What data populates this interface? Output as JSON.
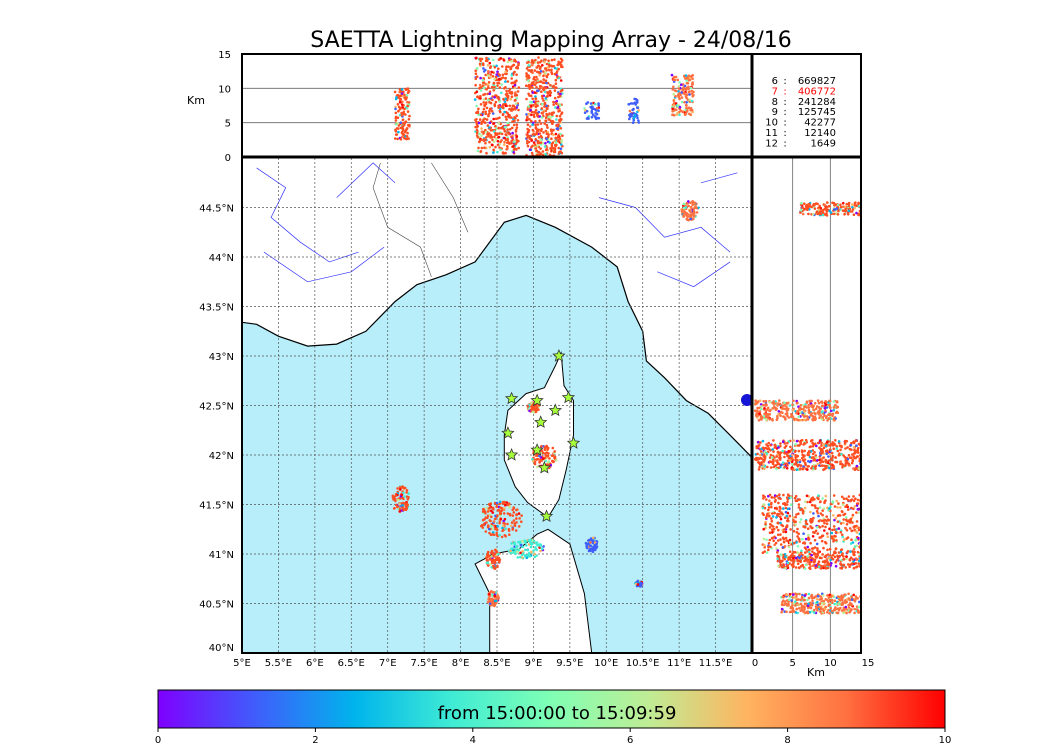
{
  "title": "SAETTA Lightning Mapping Array - 24/08/16",
  "colors": {
    "sea": "#b8eefa",
    "land": "#ffffff",
    "coast": "#000000",
    "rivers": "#3333ff",
    "borders": "#444444",
    "grid": "#555555",
    "star_fill": "#a6ff3a",
    "station_marker": "#1515d6",
    "highlight_count": "#ff0000",
    "main_cell": "#ff4f22"
  },
  "colorbar": {
    "label": "from 15:00:00 to 15:09:59",
    "ticks": [
      "0",
      "2",
      "4",
      "6",
      "8",
      "10"
    ],
    "stops": [
      "#7f00ff",
      "#3f5efb",
      "#00b4ec",
      "#40ecd4",
      "#80ffb4",
      "#c0ec94",
      "#ffb360",
      "#ff7040",
      "#ff0000"
    ]
  },
  "legend_counts": [
    {
      "label": "6",
      "value": "669827",
      "highlight": false
    },
    {
      "label": "7",
      "value": "406772",
      "highlight": true
    },
    {
      "label": "8",
      "value": "241284",
      "highlight": false
    },
    {
      "label": "9",
      "value": "125745",
      "highlight": false
    },
    {
      "label": "10",
      "value": "42277",
      "highlight": false
    },
    {
      "label": "11",
      "value": "12140",
      "highlight": false
    },
    {
      "label": "12",
      "value": "1649",
      "highlight": false
    }
  ],
  "chart_data": [
    {
      "panel": "longitude-altitude",
      "type": "scatter",
      "ylabel": "Km",
      "y_ticks": [
        "0",
        "5",
        "10",
        "15"
      ],
      "ylim": [
        0,
        15
      ],
      "xlim": [
        5,
        12
      ],
      "grid": "horizontal lines",
      "clusters": [
        {
          "lon": [
            7.1,
            7.3
          ],
          "alt": [
            2.5,
            10.5
          ],
          "dominant_color": "#ff4f22"
        },
        {
          "lon": [
            8.2,
            8.8
          ],
          "alt": [
            0.5,
            14.5
          ],
          "dominant_color": "#ff4f22"
        },
        {
          "lon": [
            8.9,
            9.4
          ],
          "alt": [
            0.0,
            14.5
          ],
          "dominant_color": "#ff4f22"
        },
        {
          "lon": [
            9.7,
            9.9
          ],
          "alt": [
            5.5,
            8.0
          ],
          "dominant_color": "#3f5efb"
        },
        {
          "lon": [
            10.3,
            10.45
          ],
          "alt": [
            5.0,
            8.5
          ],
          "dominant_color": "#3f5efb"
        },
        {
          "lon": [
            10.9,
            11.2
          ],
          "alt": [
            6.0,
            12.0
          ],
          "dominant_color": "#ff7040"
        }
      ]
    },
    {
      "panel": "plan-view-map",
      "type": "scatter",
      "x_ticks": [
        "5°E",
        "5.5°E",
        "6°E",
        "6.5°E",
        "7°E",
        "7.5°E",
        "8°E",
        "8.5°E",
        "9°E",
        "9.5°E",
        "10°E",
        "10.5°E",
        "11°E",
        "11.5°E"
      ],
      "y_ticks": [
        "40°N",
        "40.5°N",
        "41°N",
        "41.5°N",
        "42°N",
        "42.5°N",
        "43°N",
        "43.5°N",
        "44°N",
        "44.5°N"
      ],
      "xlim": [
        5,
        12
      ],
      "ylim": [
        40,
        45
      ],
      "grid": "dotted lat/lon lines",
      "clusters": [
        {
          "lon": 7.18,
          "lat": 41.55,
          "rx": 0.12,
          "ry": 0.14,
          "color": "#ff4f22"
        },
        {
          "lon": 8.55,
          "lat": 41.35,
          "rx": 0.3,
          "ry": 0.18,
          "color": "#ff4f22"
        },
        {
          "lon": 8.9,
          "lat": 41.05,
          "rx": 0.25,
          "ry": 0.1,
          "color": "#40ecd4"
        },
        {
          "lon": 8.45,
          "lat": 40.95,
          "rx": 0.1,
          "ry": 0.1,
          "color": "#ff4f22"
        },
        {
          "lon": 8.45,
          "lat": 40.55,
          "rx": 0.08,
          "ry": 0.08,
          "color": "#ff7040"
        },
        {
          "lon": 9.15,
          "lat": 41.98,
          "rx": 0.18,
          "ry": 0.12,
          "color": "#ff4f22"
        },
        {
          "lon": 9.0,
          "lat": 42.48,
          "rx": 0.08,
          "ry": 0.05,
          "color": "#ff4f22"
        },
        {
          "lon": 9.8,
          "lat": 41.1,
          "rx": 0.08,
          "ry": 0.08,
          "color": "#3f5efb"
        },
        {
          "lon": 10.45,
          "lat": 40.7,
          "rx": 0.05,
          "ry": 0.03,
          "color": "#3f5efb"
        },
        {
          "lon": 11.15,
          "lat": 44.47,
          "rx": 0.12,
          "ry": 0.1,
          "color": "#ff7040"
        }
      ],
      "stations": [
        {
          "lon": 9.35,
          "lat": 43.0
        },
        {
          "lon": 8.7,
          "lat": 42.57
        },
        {
          "lon": 9.05,
          "lat": 42.55
        },
        {
          "lon": 9.48,
          "lat": 42.58
        },
        {
          "lon": 9.3,
          "lat": 42.45
        },
        {
          "lon": 9.1,
          "lat": 42.33
        },
        {
          "lon": 8.65,
          "lat": 42.22
        },
        {
          "lon": 9.55,
          "lat": 42.12
        },
        {
          "lon": 8.7,
          "lat": 42.0
        },
        {
          "lon": 9.05,
          "lat": 42.05
        },
        {
          "lon": 9.15,
          "lat": 41.87
        },
        {
          "lon": 9.18,
          "lat": 41.38
        }
      ]
    },
    {
      "panel": "altitude-latitude",
      "type": "scatter",
      "xlabel": "Km",
      "x_ticks": [
        "0",
        "5",
        "10",
        "15"
      ],
      "xlim": [
        0,
        15
      ],
      "ylim": [
        40,
        45
      ],
      "grid": "vertical lines",
      "clusters": [
        {
          "alt": [
            6.0,
            14.0
          ],
          "lat": [
            44.42,
            44.55
          ],
          "dominant_color": "#ff4f22"
        },
        {
          "alt": [
            0.0,
            11.0
          ],
          "lat": [
            42.35,
            42.55
          ],
          "dominant_color": "#ff7040"
        },
        {
          "alt": [
            0.0,
            14.5
          ],
          "lat": [
            41.85,
            42.15
          ],
          "dominant_color": "#ff4f22"
        },
        {
          "alt": [
            1.0,
            14.5
          ],
          "lat": [
            41.0,
            41.6
          ],
          "dominant_color": "#ff4f22"
        },
        {
          "alt": [
            3.0,
            14.0
          ],
          "lat": [
            40.85,
            41.0
          ],
          "dominant_color": "#ff4f22"
        },
        {
          "alt": [
            3.5,
            14.0
          ],
          "lat": [
            40.4,
            40.6
          ],
          "dominant_color": "#ff7040"
        }
      ]
    }
  ]
}
